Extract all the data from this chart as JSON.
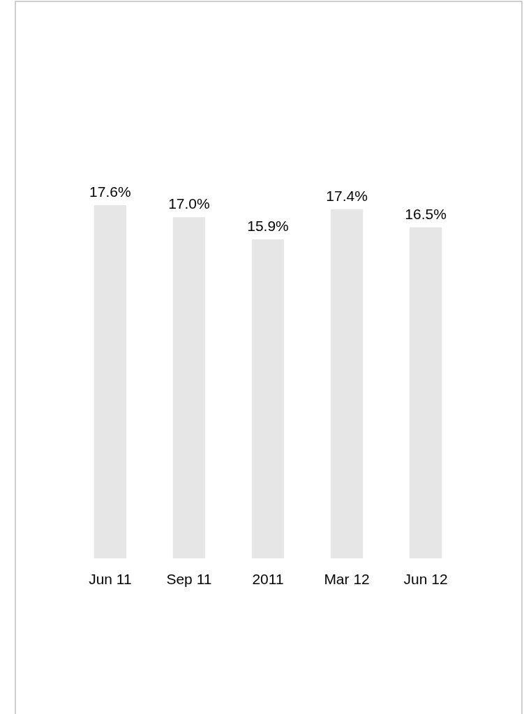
{
  "chart_data": {
    "type": "bar",
    "categories": [
      "Jun 11",
      "Sep 11",
      "2011",
      "Mar 12",
      "Jun 12"
    ],
    "values": [
      17.6,
      17.0,
      15.9,
      17.4,
      16.5
    ],
    "value_labels": [
      "17.6%",
      "17.0%",
      "15.9%",
      "17.4%",
      "16.5%"
    ],
    "color": "#e6e6e6"
  }
}
